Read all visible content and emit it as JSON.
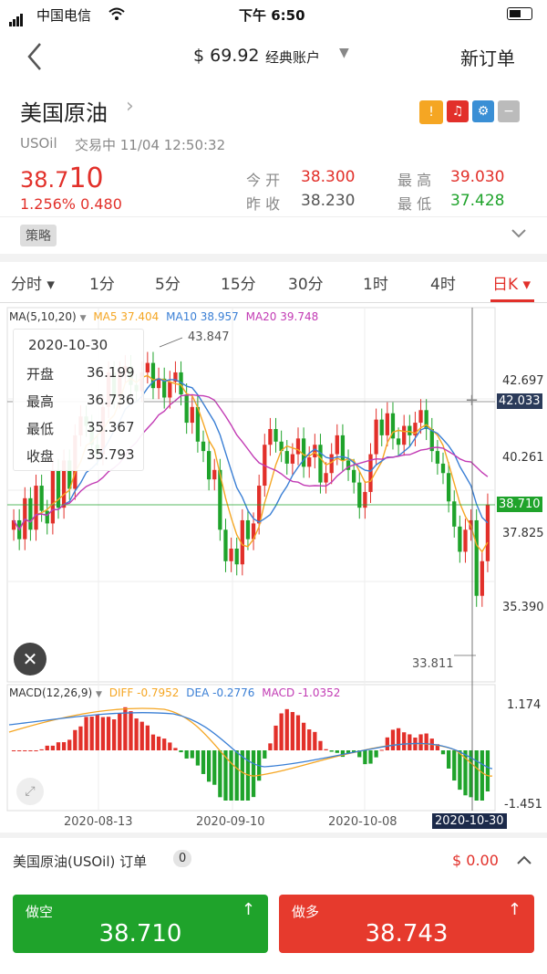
{
  "status_bar": {
    "carrier": "中国电信",
    "time": "下午 6:50"
  },
  "nav": {
    "balance": "$ 69.92",
    "account": "经典账户",
    "new_order": "新订单"
  },
  "instrument": {
    "name": "美国原油",
    "symbol": "USOil",
    "state": "交易中 11/04 12:50:32",
    "price_main": "38.7",
    "price_big": "10",
    "change": "1.256% 0.480",
    "open_label": "今 开",
    "open": "38.300",
    "prev_close_label": "昨 收",
    "prev_close": "38.230",
    "high_label": "最 高",
    "high": "39.030",
    "low_label": "最 低",
    "low": "37.428"
  },
  "strategy": {
    "label": "策略"
  },
  "tabs": [
    "分时 ▾",
    "1分",
    "5分",
    "15分",
    "30分",
    "1时",
    "4时",
    "日K ▾"
  ],
  "active_tab": 7,
  "ma": {
    "label": "MA(5,10,20)",
    "ma5": "MA5 37.404",
    "ma10": "MA10 38.957",
    "ma20": "MA20 39.748",
    "color5": "#f5a623",
    "color10": "#3a7fd5",
    "color20": "#c23bb4"
  },
  "tooltip": {
    "date": "2020-10-30",
    "rows": [
      {
        "label": "开盘",
        "value": "36.199"
      },
      {
        "label": "最高",
        "value": "36.736"
      },
      {
        "label": "最低",
        "value": "35.367"
      },
      {
        "label": "收盘",
        "value": "35.793"
      }
    ]
  },
  "price_axis": {
    "p1": "42.697",
    "crosshair": "42.033",
    "p2": "40.261",
    "current": "38.710",
    "p3": "37.825",
    "p4": "35.390"
  },
  "annotations": {
    "max": "43.847",
    "min": "33.811"
  },
  "macd": {
    "label": "MACD(12,26,9)",
    "diff": "DIFF -0.7952",
    "dea": "DEA -0.2776",
    "macd": "MACD -1.0352",
    "top": "1.174",
    "bottom": "-1.451"
  },
  "dates": {
    "d1": "2020-08-13",
    "d2": "2020-09-10",
    "d3": "2020-10-08",
    "cross": "2020-10-30"
  },
  "order": {
    "title": "美国原油(USOil) 订单",
    "count": "0",
    "amount": "$ 0.00"
  },
  "sell": {
    "label": "做空",
    "price": "38.710"
  },
  "buy": {
    "label": "做多",
    "price": "38.743"
  },
  "colors": {
    "up": "#e2302a",
    "down": "#1fa32b",
    "accent": "#e2302a"
  },
  "chart_data": {
    "type": "candlestick",
    "closes": [
      38.2,
      37.6,
      38.9,
      37.9,
      39.3,
      38.5,
      38.1,
      39.8,
      38.6,
      40.1,
      39.2,
      40.9,
      41.5,
      41.2,
      40.6,
      40.3,
      41.8,
      42.9,
      42.1,
      42.9,
      43.1,
      42.5,
      42.3,
      42.9,
      43.2,
      42.4,
      42.7,
      42.1,
      42.6,
      42.9,
      42.2,
      41.3,
      41.8,
      40.7,
      40.4,
      39.5,
      39.8,
      37.9,
      36.9,
      37.3,
      36.8,
      38.2,
      37.6,
      38.1,
      39.3,
      40.6,
      41.1,
      40.7,
      40.4,
      40.0,
      40.3,
      40.8,
      39.9,
      40.2,
      40.6,
      39.4,
      39.7,
      40.3,
      40.9,
      40.1,
      39.8,
      39.4,
      38.6,
      39.1,
      40.3,
      41.4,
      40.9,
      41.6,
      40.8,
      40.6,
      41.2,
      40.9,
      41.3,
      41.7,
      41.1,
      40.4,
      40.0,
      39.7,
      38.8,
      38.0,
      37.2,
      37.9,
      38.2,
      35.8,
      36.9,
      38.7
    ]
  }
}
